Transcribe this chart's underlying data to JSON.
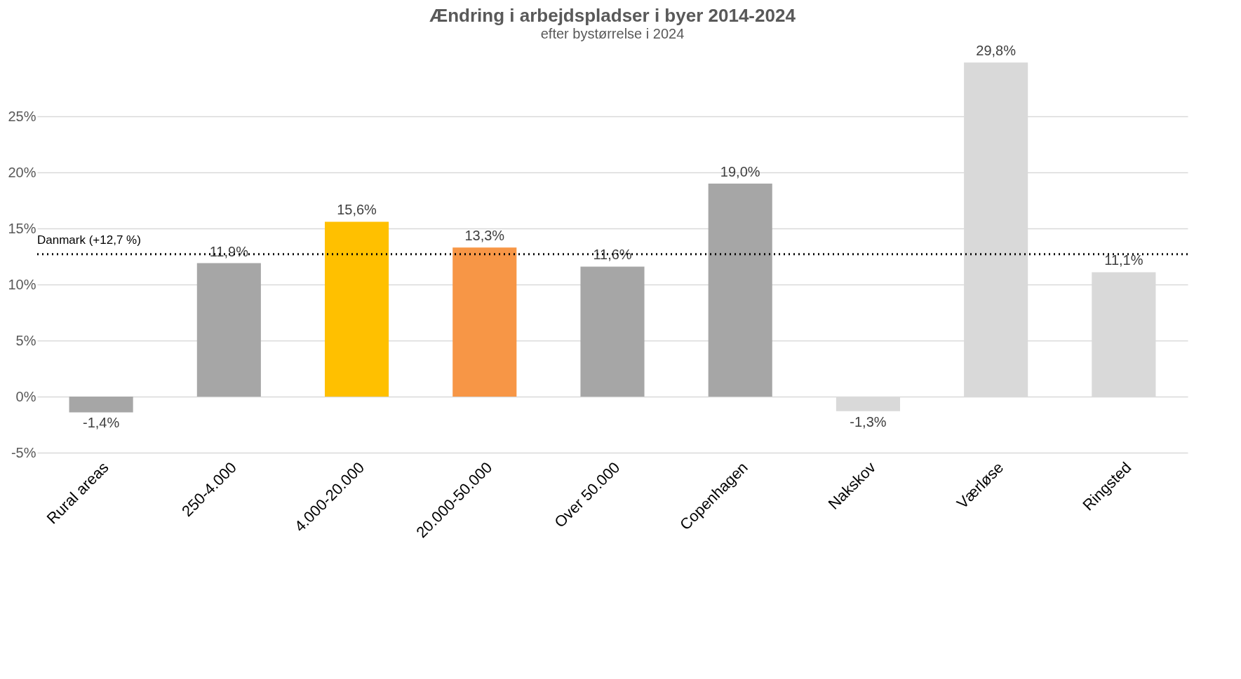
{
  "chart_data": {
    "type": "bar",
    "title": "Ændring i arbejdspladser i byer 2014-2024",
    "subtitle": "efter bystørrelse i 2024",
    "categories": [
      "Rural areas",
      "250-4.000",
      "4.000-20.000",
      "20.000-50.000",
      "Over 50.000",
      "Copenhagen",
      "Nakskov",
      "Værløse",
      "Ringsted"
    ],
    "values": [
      -1.4,
      11.9,
      15.6,
      13.3,
      11.6,
      19.0,
      -1.3,
      29.8,
      11.1
    ],
    "colors": [
      "#a6a6a6",
      "#a6a6a6",
      "#ffc000",
      "#f79646",
      "#a6a6a6",
      "#a6a6a6",
      "#d9d9d9",
      "#d9d9d9",
      "#d9d9d9"
    ],
    "value_labels": [
      "-1,4%",
      "11,9%",
      "15,6%",
      "13,3%",
      "11,6%",
      "19,0%",
      "-1,3%",
      "29,8%",
      "11,1%"
    ],
    "ylim": [
      -5,
      30
    ],
    "yticks": [
      {
        "value": -5,
        "label": "-5%"
      },
      {
        "value": 0,
        "label": "0%"
      },
      {
        "value": 5,
        "label": "5%"
      },
      {
        "value": 10,
        "label": "10%"
      },
      {
        "value": 15,
        "label": "15%"
      },
      {
        "value": 20,
        "label": "20%"
      },
      {
        "value": 25,
        "label": "25%"
      }
    ],
    "grid": "y",
    "ref_lines": [
      {
        "axis": "y",
        "value": 12.7,
        "label": "Danmark (+12,7 %)",
        "color": "#000000",
        "line_style": "dotted"
      }
    ]
  }
}
